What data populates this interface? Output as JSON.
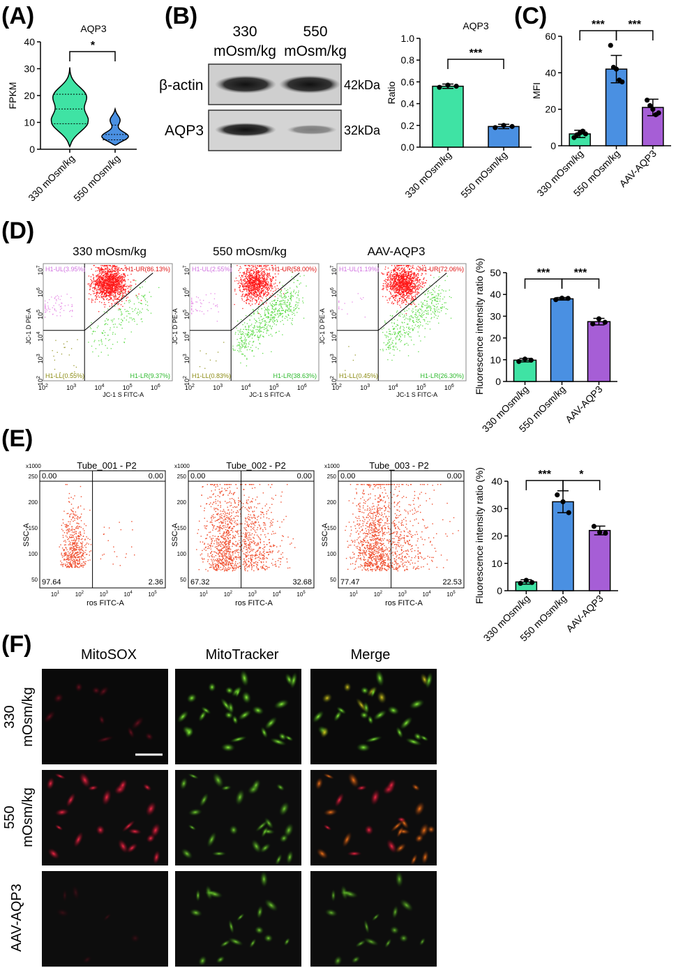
{
  "panels": {
    "A": {
      "letter": "(A)",
      "title": "AQP3",
      "ylabel": "FPKM",
      "yticks": [
        0,
        10,
        20,
        30,
        40
      ],
      "categories": [
        "330 mOsm/kg",
        "550 mOsm/kg"
      ],
      "significance": "*",
      "colors": [
        "#3fe3a4",
        "#4a90e2"
      ]
    },
    "B": {
      "letter": "(B)",
      "blot": {
        "lanes": [
          "330\nmOsm/kg",
          "550\nmOsm/kg"
        ],
        "lane_line1": [
          "330",
          "550"
        ],
        "lane_line2": [
          "mOsm/kg",
          "mOsm/kg"
        ],
        "rows": [
          {
            "label": "β-actin",
            "size": "42kDa"
          },
          {
            "label": "AQP3",
            "size": "32kDa"
          }
        ]
      },
      "bar": {
        "title": "AQP3",
        "ylabel": "Ratio",
        "yticks": [
          "0.0",
          "0.2",
          "0.4",
          "0.6",
          "0.8",
          "1.0"
        ],
        "categories": [
          "330 mOsm/kg",
          "550 mOsm/kg"
        ],
        "significance": "***",
        "colors": [
          "#3fe3a4",
          "#4a90e2"
        ]
      }
    },
    "C": {
      "letter": "(C)",
      "ylabel": "MFI",
      "yticks": [
        0,
        20,
        40,
        60
      ],
      "categories": [
        "330 mOsm/kg",
        "550 mOsm/kg",
        "AAV-AQP3"
      ],
      "significance": [
        "***",
        "***"
      ],
      "colors": [
        "#3fe3a4",
        "#4a90e2",
        "#a65ed6"
      ]
    },
    "D": {
      "letter": "(D)",
      "flow": [
        {
          "title": "330 mOsm/kg",
          "UL": "H1-UL(3.95%)",
          "UR": "H1-UR(86.13%)",
          "LL": "H1-LL(0.55%)",
          "LR": "H1-LR(9.37%)"
        },
        {
          "title": "550 mOsm/kg",
          "UL": "H1-UL(2.55%)",
          "UR": "H1-UR(58.00%)",
          "LL": "H1-LL(0.83%)",
          "LR": "H1-LR(38.63%)"
        },
        {
          "title": "AAV-AQP3",
          "UL": "H1-UL(1.19%)",
          "UR": "H1-UR(72.06%)",
          "LL": "H1-LL(0.45%)",
          "LR": "H1-LR(26.30%)"
        }
      ],
      "flow_xlabel": "JC-1 S FITC-A",
      "flow_ylabel": "JC-1 D PE-A",
      "bar": {
        "ylabel": "Fluorescence intensity ratio (%)",
        "yticks": [
          0,
          10,
          20,
          30,
          40,
          50
        ],
        "categories": [
          "330 mOsm/kg",
          "550 mOsm/kg",
          "AAV-AQP3"
        ],
        "significance": [
          "***",
          "***"
        ],
        "colors": [
          "#3fe3a4",
          "#4a90e2",
          "#a65ed6"
        ]
      }
    },
    "E": {
      "letter": "(E)",
      "flow": [
        {
          "title": "Tube_001 - P2",
          "UL": "0.00",
          "UR": "0.00",
          "LL": "97.64",
          "LR": "2.36"
        },
        {
          "title": "Tube_002 - P2",
          "UL": "0.00",
          "UR": "0.00",
          "LL": "67.32",
          "LR": "32.68"
        },
        {
          "title": "Tube_003 - P2",
          "UL": "0.00",
          "UR": "0.00",
          "LL": "77.47",
          "LR": "22.53"
        }
      ],
      "flow_xlabel": "ros FITC-A",
      "flow_ylabel": "SSC-A",
      "flow_scale": "x1000",
      "flow_yticks": [
        "250",
        "200",
        "150",
        "100",
        "50"
      ],
      "bar": {
        "ylabel": "Fluorescence intensity ratio (%)",
        "yticks": [
          0,
          10,
          20,
          30,
          40
        ],
        "categories": [
          "330 mOsm/kg",
          "550 mOsm/kg",
          "AAV-AQP3"
        ],
        "significance": [
          "***",
          "*"
        ],
        "colors": [
          "#3fe3a4",
          "#4a90e2",
          "#a65ed6"
        ]
      }
    },
    "F": {
      "letter": "(F)",
      "columns": [
        "MitoSOX",
        "MitoTracker",
        "Merge"
      ],
      "rows": [
        {
          "line1": "330",
          "line2": "mOsm/kg"
        },
        {
          "line1": "550",
          "line2": "mOsm/kg"
        },
        {
          "line1": "AAV-AQP3",
          "line2": ""
        }
      ]
    }
  },
  "chart_data": [
    {
      "type": "violin",
      "panel": "A",
      "title": "AQP3",
      "ylabel": "FPKM",
      "ylim": [
        0,
        40
      ],
      "categories": [
        "330 mOsm/kg",
        "550 mOsm/kg"
      ],
      "violins": [
        {
          "min": 1,
          "q1": 9.5,
          "median": 15,
          "q3": 20.5,
          "max": 30.5
        },
        {
          "min": 1.5,
          "q1": 3.5,
          "median": 5.5,
          "q3": 9,
          "max": 15
        }
      ]
    },
    {
      "type": "bar",
      "panel": "B",
      "title": "AQP3",
      "ylabel": "Ratio",
      "ylim": [
        0,
        1.0
      ],
      "categories": [
        "330 mOsm/kg",
        "550 mOsm/kg"
      ],
      "values": [
        0.56,
        0.19
      ],
      "errors": [
        0.02,
        0.02
      ],
      "points": [
        [
          0.55,
          0.57,
          0.56
        ],
        [
          0.18,
          0.2,
          0.19
        ]
      ]
    },
    {
      "type": "bar",
      "panel": "C",
      "ylabel": "MFI",
      "ylim": [
        0,
        60
      ],
      "categories": [
        "330 mOsm/kg",
        "550 mOsm/kg",
        "AAV-AQP3"
      ],
      "values": [
        6.5,
        42,
        21
      ],
      "errors": [
        2,
        7.5,
        4.5
      ],
      "points": [
        [
          4.5,
          6,
          7,
          8,
          6.5
        ],
        [
          55,
          43,
          42,
          36,
          35
        ],
        [
          25,
          22,
          20,
          17,
          18
        ]
      ]
    },
    {
      "type": "bar",
      "panel": "D",
      "ylabel": "Fluorescence intensity ratio (%)",
      "ylim": [
        0,
        50
      ],
      "categories": [
        "330 mOsm/kg",
        "550 mOsm/kg",
        "AAV-AQP3"
      ],
      "values": [
        9.8,
        38,
        27.5
      ],
      "errors": [
        0.8,
        0.6,
        1.5
      ],
      "points": [
        [
          9.2,
          10.3,
          9.8
        ],
        [
          37.6,
          38.3,
          38.2
        ],
        [
          26.5,
          28.8,
          27.2
        ]
      ]
    },
    {
      "type": "bar",
      "panel": "E",
      "ylabel": "Fluorescence intensity ratio (%)",
      "ylim": [
        0,
        40
      ],
      "categories": [
        "330 mOsm/kg",
        "550 mOsm/kg",
        "AAV-AQP3"
      ],
      "values": [
        3.2,
        32.5,
        22
      ],
      "errors": [
        0.8,
        4,
        1.6
      ],
      "points": [
        [
          2.7,
          3.8,
          3.0
        ],
        [
          35,
          32.5,
          28.5
        ],
        [
          23.5,
          21.3,
          21.0
        ]
      ]
    }
  ]
}
